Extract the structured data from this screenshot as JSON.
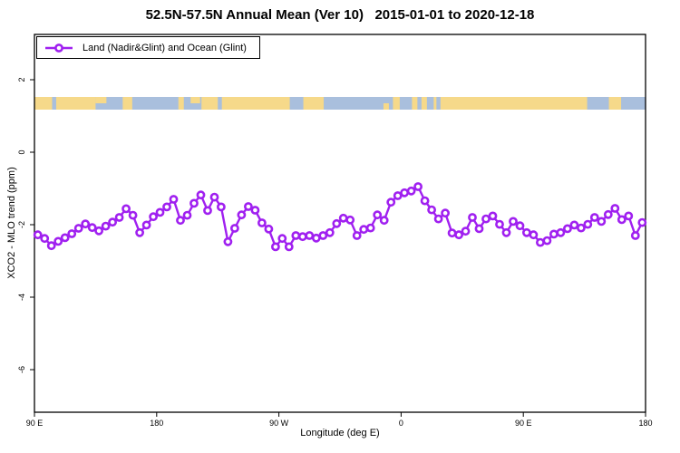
{
  "chart_data": {
    "type": "line",
    "title": "52.5N-57.5N Annual Mean (Ver 10)   2015-01-01 to 2020-12-18",
    "xlabel": "Longitude (deg E)",
    "ylabel": "XCO2 - MLO trend (ppm)",
    "legend": [
      "Land (Nadir&Glint) and Ocean (Glint)"
    ],
    "legend_position": "top-left",
    "grid": false,
    "series_color": "#A020F0",
    "axis_color": "#000000",
    "xlim": [
      90,
      540
    ],
    "ylim": [
      -7.175,
      3.25
    ],
    "x_ticks": [
      {
        "value": 90,
        "label": "90 E"
      },
      {
        "value": 180,
        "label": "180"
      },
      {
        "value": 270,
        "label": "90 W"
      },
      {
        "value": 360,
        "label": "0"
      },
      {
        "value": 450,
        "label": "90 E"
      },
      {
        "value": 540,
        "label": "180"
      }
    ],
    "y_ticks": [
      2,
      0,
      -2,
      -4,
      -6
    ],
    "x": [
      92.5,
      97.5,
      102.5,
      107.5,
      112.5,
      117.5,
      122.5,
      127.5,
      132.5,
      137.5,
      142.5,
      147.5,
      152.5,
      157.5,
      162.5,
      167.5,
      172.5,
      177.5,
      182.5,
      187.5,
      192.5,
      197.5,
      202.5,
      207.5,
      212.5,
      217.5,
      222.5,
      227.5,
      232.5,
      237.5,
      242.5,
      247.5,
      252.5,
      257.5,
      262.5,
      267.5,
      272.5,
      277.5,
      282.5,
      287.5,
      292.5,
      297.5,
      302.5,
      307.5,
      312.5,
      317.5,
      322.5,
      327.5,
      332.5,
      337.5,
      342.5,
      347.5,
      352.5,
      357.5,
      362.5,
      367.5,
      372.5,
      377.5,
      382.5,
      387.5,
      392.5,
      397.5,
      402.5,
      407.5,
      412.5,
      417.5,
      422.5,
      427.5,
      432.5,
      437.5,
      442.5,
      447.5,
      452.5,
      457.5,
      462.5,
      467.5,
      472.5,
      477.5,
      482.5,
      487.5,
      492.5,
      497.5,
      502.5,
      507.5,
      512.5,
      517.5,
      522.5,
      527.5,
      532.5,
      537.5
    ],
    "values": [
      -2.28,
      -2.38,
      -2.58,
      -2.46,
      -2.36,
      -2.25,
      -2.1,
      -1.98,
      -2.08,
      -2.17,
      -2.04,
      -1.93,
      -1.8,
      -1.56,
      -1.74,
      -2.22,
      -2.01,
      -1.78,
      -1.66,
      -1.51,
      -1.3,
      -1.88,
      -1.74,
      -1.41,
      -1.18,
      -1.61,
      -1.24,
      -1.51,
      -2.47,
      -2.1,
      -1.73,
      -1.5,
      -1.6,
      -1.95,
      -2.12,
      -2.61,
      -2.38,
      -2.61,
      -2.3,
      -2.33,
      -2.3,
      -2.37,
      -2.3,
      -2.22,
      -1.97,
      -1.82,
      -1.87,
      -2.3,
      -2.13,
      -2.09,
      -1.73,
      -1.88,
      -1.38,
      -1.2,
      -1.12,
      -1.07,
      -0.95,
      -1.34,
      -1.59,
      -1.84,
      -1.68,
      -2.23,
      -2.28,
      -2.18,
      -1.8,
      -2.11,
      -1.84,
      -1.76,
      -1.99,
      -2.22,
      -1.91,
      -2.03,
      -2.22,
      -2.28,
      -2.49,
      -2.44,
      -2.26,
      -2.22,
      -2.11,
      -2.01,
      -2.09,
      -1.99,
      -1.8,
      -1.91,
      -1.72,
      -1.55,
      -1.86,
      -1.76,
      -2.3,
      -1.94
    ],
    "map_band": {
      "y_range": [
        1.175,
        1.525
      ],
      "ocean_color": "#A9BFDD",
      "land_color": "#F6D98A",
      "land_segments": [
        [
          90,
          135
        ],
        [
          155,
          162
        ],
        [
          196,
          200
        ],
        [
          213,
          278
        ],
        [
          288,
          303
        ],
        [
          354,
          359
        ],
        [
          368,
          497
        ],
        [
          513,
          522
        ]
      ],
      "land_half_segments": [
        {
          "range": [
            135,
            143
          ],
          "half": "top"
        },
        {
          "range": [
            205,
            212
          ],
          "half": "top"
        },
        {
          "range": [
            347,
            351
          ],
          "half": "bottom"
        }
      ],
      "ocean_specks": [
        [
          103,
          106
        ],
        [
          225,
          228
        ],
        [
          372,
          375
        ],
        [
          379,
          384
        ],
        [
          386,
          389
        ]
      ]
    }
  }
}
